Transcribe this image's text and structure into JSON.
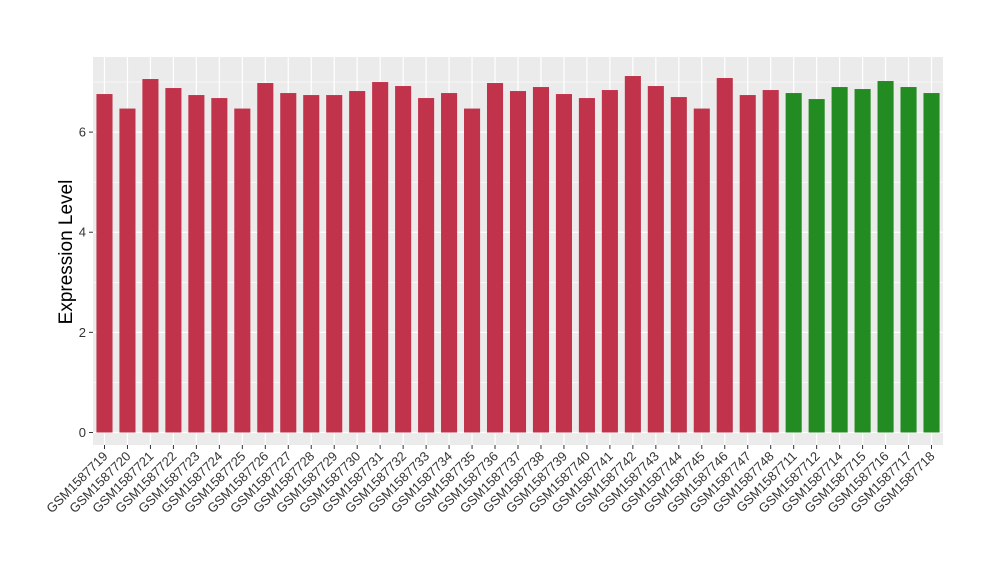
{
  "chart_data": {
    "type": "bar",
    "ylabel": "Expression Level",
    "xlabel": "",
    "ylim": [
      -0.25,
      7.5
    ],
    "yticks": [
      0,
      2,
      4,
      6
    ],
    "grid": true,
    "panel_background": "#ebebeb",
    "grid_color": "#ffffff",
    "categories": [
      "GSM1587719",
      "GSM1587720",
      "GSM1587721",
      "GSM1587722",
      "GSM1587723",
      "GSM1587724",
      "GSM1587725",
      "GSM1587726",
      "GSM1587727",
      "GSM1587728",
      "GSM1587729",
      "GSM1587730",
      "GSM1587731",
      "GSM1587732",
      "GSM1587733",
      "GSM1587734",
      "GSM1587735",
      "GSM1587736",
      "GSM1587737",
      "GSM1587738",
      "GSM1587739",
      "GSM1587740",
      "GSM1587741",
      "GSM1587742",
      "GSM1587743",
      "GSM1587744",
      "GSM1587745",
      "GSM1587746",
      "GSM1587747",
      "GSM1587748",
      "GSM1587711",
      "GSM1587712",
      "GSM1587714",
      "GSM1587715",
      "GSM1587716",
      "GSM1587717",
      "GSM1587718"
    ],
    "values": [
      6.76,
      6.47,
      7.06,
      6.88,
      6.74,
      6.68,
      6.47,
      6.98,
      6.78,
      6.74,
      6.74,
      6.82,
      7.0,
      6.92,
      6.68,
      6.78,
      6.47,
      6.98,
      6.82,
      6.9,
      6.76,
      6.68,
      6.84,
      7.12,
      6.92,
      6.7,
      6.47,
      7.08,
      6.74,
      6.84,
      6.78,
      6.66,
      6.9,
      6.86,
      7.02,
      6.9,
      6.78
    ],
    "bar_colors": [
      "#c0334b",
      "#c0334b",
      "#c0334b",
      "#c0334b",
      "#c0334b",
      "#c0334b",
      "#c0334b",
      "#c0334b",
      "#c0334b",
      "#c0334b",
      "#c0334b",
      "#c0334b",
      "#c0334b",
      "#c0334b",
      "#c0334b",
      "#c0334b",
      "#c0334b",
      "#c0334b",
      "#c0334b",
      "#c0334b",
      "#c0334b",
      "#c0334b",
      "#c0334b",
      "#c0334b",
      "#c0334b",
      "#c0334b",
      "#c0334b",
      "#c0334b",
      "#c0334b",
      "#c0334b",
      "#228b22",
      "#228b22",
      "#228b22",
      "#228b22",
      "#228b22",
      "#228b22",
      "#228b22"
    ]
  }
}
